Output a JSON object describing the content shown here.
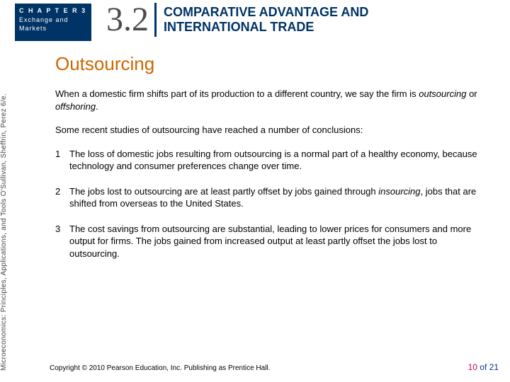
{
  "chapterBadge": {
    "line1": "C H A P T E R   3",
    "line2": "Exchange  and",
    "line3": "Markets"
  },
  "section": {
    "number": "3.2",
    "titleLine1": "COMPARATIVE ADVANTAGE AND",
    "titleLine2": "INTERNATIONAL TRADE"
  },
  "spine": "Microeconomics: Principles, Applications, and Tools     O'Sullivan, Sheffrin, Perez     6/e.",
  "heading": "Outsourcing",
  "para1_a": "When a domestic firm shifts part of its production to a different country, we say the firm is ",
  "para1_i1": "outsourcing",
  "para1_b": " or ",
  "para1_i2": "offshoring",
  "para1_c": ".",
  "para2": "Some recent studies of outsourcing have reached a number of conclusions:",
  "item1_num": "1",
  "item1": "The loss of domestic jobs resulting from outsourcing is a normal part of a healthy economy, because technology and consumer preferences change over time.",
  "item2_num": "2",
  "item2_a": "The jobs lost to outsourcing are at least partly offset by jobs gained through ",
  "item2_i": "insourcing",
  "item2_b": ", jobs that are shifted from overseas to the United States.",
  "item3_num": "3",
  "item3": "The cost savings from outsourcing are substantial, leading to lower prices for consumers and more output for firms.  The jobs gained from increased output at least partly offset the jobs lost to outsourcing.",
  "copyright": "Copyright © 2010  Pearson Education, Inc. Publishing as Prentice Hall.",
  "page_cur": "10",
  "page_of": " of 21"
}
